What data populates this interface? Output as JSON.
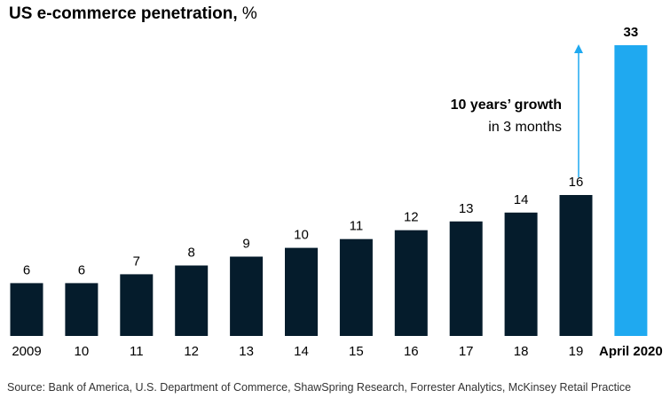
{
  "title": {
    "main": "US e-commerce penetration,",
    "unit": "%"
  },
  "source": "Source: Bank of America, U.S. Department of Commerce, ShawSpring Research, Forrester Analytics, McKinsey Retail Practice",
  "annotation": {
    "line1": "10 years’ growth",
    "line2": "in 3 months"
  },
  "colors": {
    "bar": "#051c2c",
    "highlight": "#1fa9f0",
    "arrow": "#1fa9f0"
  },
  "chart_data": {
    "type": "bar",
    "title": "US e-commerce penetration, %",
    "xlabel": "",
    "ylabel": "",
    "categories": [
      "2009",
      "10",
      "11",
      "12",
      "13",
      "14",
      "15",
      "16",
      "17",
      "18",
      "19",
      "April 2020"
    ],
    "values": [
      6,
      6,
      7,
      8,
      9,
      10,
      11,
      12,
      13,
      14,
      16,
      33
    ],
    "data_labels": [
      "6",
      "6",
      "7",
      "8",
      "9",
      "10",
      "11",
      "12",
      "13",
      "14",
      "16",
      "33"
    ],
    "highlight_index": 11,
    "ylim": [
      0,
      33
    ],
    "grid": false,
    "legend": "none"
  }
}
